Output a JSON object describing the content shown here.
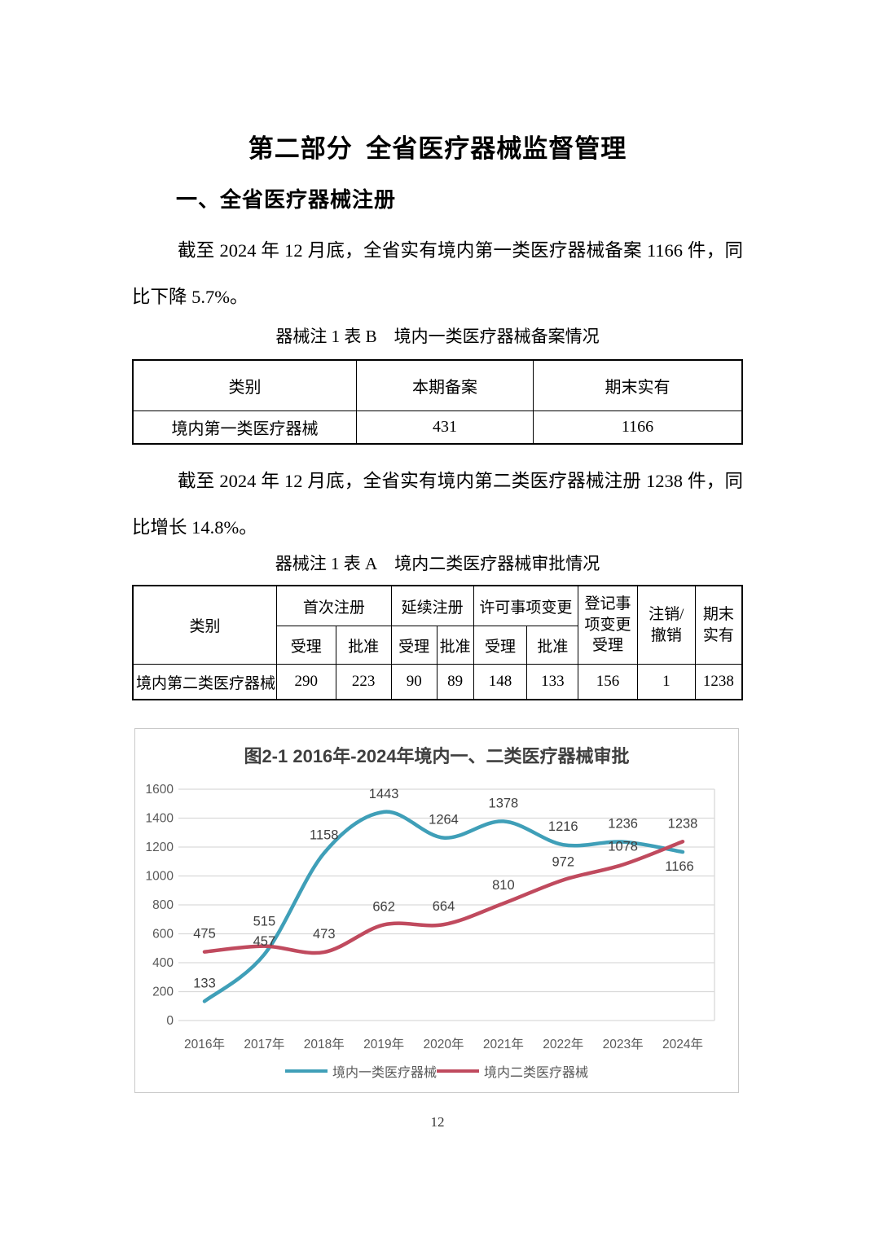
{
  "page": {
    "title": "第二部分 全省医疗器械监督管理",
    "section_heading": "一、全省医疗器械注册",
    "paragraph1": "截至 2024 年 12 月底，全省实有境内第一类医疗器械备案 1166 件，同比下降 5.7%。",
    "paragraph2": "截至 2024 年 12 月底，全省实有境内第二类医疗器械注册 1238 件，同比增长 14.8%。",
    "page_number": "12"
  },
  "tableB": {
    "caption": "器械注 1 表 B 境内一类医疗器械备案情况",
    "headers": [
      "类别",
      "本期备案",
      "期末实有"
    ],
    "rows": [
      [
        "境内第一类医疗器械",
        "431",
        "1166"
      ]
    ]
  },
  "tableA": {
    "caption": "器械注 1 表 A 境内二类医疗器械审批情况",
    "col_category": "类别",
    "group_headers": [
      "首次注册",
      "延续注册",
      "许可事项变更"
    ],
    "sub_headers": [
      "受理",
      "批准",
      "受理",
      "批准",
      "受理",
      "批准"
    ],
    "col_record_change": "登记事\n项变更\n受理",
    "col_cancel": "注销/\n撤销",
    "col_period_end": "期末\n实有",
    "row": [
      "境内第二类医疗器械",
      "290",
      "223",
      "90",
      "89",
      "148",
      "133",
      "156",
      "1",
      "1238"
    ]
  },
  "chart_data": {
    "type": "line",
    "title": "图2-1 2016年-2024年境内一、二类医疗器械审批",
    "categories": [
      "2016年",
      "2017年",
      "2018年",
      "2019年",
      "2020年",
      "2021年",
      "2022年",
      "2023年",
      "2024年"
    ],
    "series": [
      {
        "name": "境内一类医疗器械",
        "color": "#3f9fb8",
        "values": [
          133,
          457,
          1158,
          1443,
          1264,
          1378,
          1216,
          1236,
          1166
        ],
        "label_offsets": {
          "1": [
            0,
            6
          ],
          "8": [
            -4,
            40
          ]
        }
      },
      {
        "name": "境内二类医疗器械",
        "color": "#c04a5e",
        "values": [
          475,
          515,
          473,
          662,
          664,
          810,
          972,
          1078,
          1238
        ],
        "label_offsets": {
          "1": [
            0,
            -8
          ]
        }
      }
    ],
    "xlabel": "",
    "ylabel": "",
    "ylim": [
      0,
      1600
    ],
    "ytick_step": 200,
    "grid": true,
    "legend_position": "bottom"
  }
}
